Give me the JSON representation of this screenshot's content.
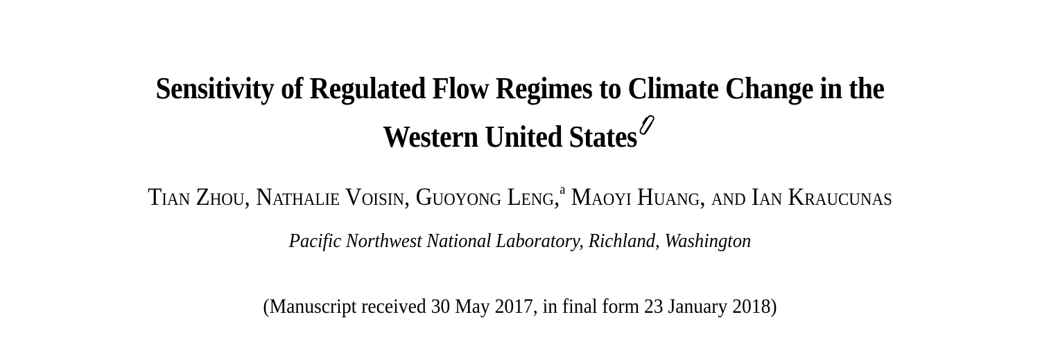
{
  "title": {
    "line1": "Sensitivity of Regulated Flow Regimes to Climate Change in the",
    "line2": "Western United States",
    "attachment_icon": "paperclip-icon"
  },
  "authors": {
    "part1": "Tian Zhou, Nathalie Voisin, Guoyong Leng,",
    "superscript": "a",
    "part2": " Maoyi Huang, and Ian Kraucunas"
  },
  "affiliation": "Pacific Northwest National Laboratory, Richland, Washington",
  "manuscript_dates": "(Manuscript received 30 May 2017, in final form 23 January 2018)"
}
